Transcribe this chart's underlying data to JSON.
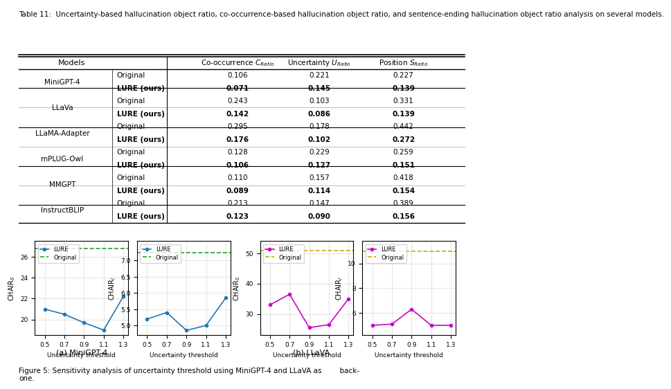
{
  "table_caption": "Table 11:  Uncertainty-based hallucination object ratio, co-occurrence-based hallucination object ratio, and sentence-ending hallucination object ratio analysis on several models.",
  "table_rows": [
    [
      "MiniGPT-4",
      "Original",
      "0.106",
      "0.221",
      "0.227"
    ],
    [
      "",
      "LURE (ours)",
      "0.071",
      "0.145",
      "0.139"
    ],
    [
      "LLaVa",
      "Original",
      "0.243",
      "0.103",
      "0.331"
    ],
    [
      "",
      "LURE (ours)",
      "0.142",
      "0.086",
      "0.139"
    ],
    [
      "LLaMA-Adapter",
      "Original",
      "0.295",
      "0.178",
      "0.442"
    ],
    [
      "",
      "LURE (ours)",
      "0.176",
      "0.102",
      "0.272"
    ],
    [
      "mPLUG-Owl",
      "Original",
      "0.128",
      "0.229",
      "0.259"
    ],
    [
      "",
      "LURE (ours)",
      "0.106",
      "0.127",
      "0.151"
    ],
    [
      "MMGPT",
      "Original",
      "0.110",
      "0.157",
      "0.418"
    ],
    [
      "",
      "LURE (ours)",
      "0.089",
      "0.114",
      "0.154"
    ],
    [
      "InstructBLIP",
      "Original",
      "0.213",
      "0.147",
      "0.389"
    ],
    [
      "",
      "LURE (ours)",
      "0.123",
      "0.090",
      "0.156"
    ]
  ],
  "x_vals": [
    0.5,
    0.7,
    0.9,
    1.1,
    1.3
  ],
  "minigpt4_chairs_lure": [
    21.0,
    20.5,
    19.7,
    19.0,
    22.2
  ],
  "minigpt4_chairs_original": 26.8,
  "minigpt4_chairi_lure": [
    5.2,
    5.4,
    4.85,
    5.0,
    5.85
  ],
  "minigpt4_chairi_original": 7.25,
  "llava_chairs_lure": [
    33.0,
    36.5,
    25.5,
    26.5,
    35.0
  ],
  "llava_chairs_original": 51.0,
  "llava_chairi_lure": [
    5.0,
    5.1,
    6.3,
    5.0,
    5.0
  ],
  "llava_chairi_original": 11.0,
  "xlabel": "Uncertainty threshold",
  "lure_color_minigpt": "#1f77b4",
  "lure_color_llava": "#cc00cc",
  "original_color_minigpt": "#2ca02c",
  "original_color_llava": "#ccaa00",
  "fig_caption": "Figure 5: Sensitivity analysis of uncertainty threshold using MiniGPT-4 and LLaVA as        back-\none.",
  "subtitle_minigpt": "(a) MiniGPT-4",
  "subtitle_llava": "(b) LLaVA"
}
